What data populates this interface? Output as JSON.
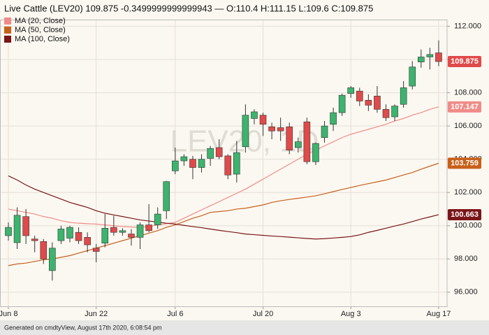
{
  "chart_data": {
    "type": "candlestick",
    "title": "Live Cattle (LEV20) 109.875 -0.3499999999999943 — O:110.4 H:111.15 L:109.6 C:109.875",
    "watermark": "LEV20, 1D",
    "footer": "Generated on cmdtyView, August 17th 2020, 6:08:54 pm",
    "categories": [
      "Jun 8",
      null,
      null,
      null,
      null,
      null,
      null,
      null,
      null,
      null,
      "Jun 22",
      null,
      null,
      null,
      null,
      null,
      null,
      null,
      null,
      "Jul 6",
      null,
      null,
      null,
      null,
      null,
      null,
      null,
      null,
      null,
      "Jul 20",
      null,
      null,
      null,
      null,
      null,
      null,
      null,
      null,
      null,
      "Aug 3",
      null,
      null,
      null,
      null,
      null,
      null,
      null,
      null,
      null,
      "Aug 17"
    ],
    "open": [
      99.4,
      98.98,
      100.55,
      99.2,
      99.05,
      97.3,
      99.1,
      99.25,
      99.6,
      99.3,
      98.65,
      98.95,
      99.9,
      99.6,
      99.5,
      99.3,
      100.05,
      100.05,
      100.9,
      103.3,
      103.9,
      104.0,
      103.5,
      104.05,
      104.7,
      104.2,
      103.1,
      104.75,
      106.45,
      106.65,
      105.95,
      105.9,
      105.95,
      104.7,
      106.25,
      103.85,
      105.3,
      106.1,
      106.8,
      107.95,
      108.1,
      107.55,
      107.8,
      107.0,
      106.55,
      107.3,
      108.4,
      109.85,
      110.15,
      110.4
    ],
    "high": [
      100.2,
      101.1,
      101.0,
      99.4,
      99.2,
      99.0,
      100.0,
      100.0,
      99.9,
      99.6,
      98.9,
      100.7,
      100.6,
      99.85,
      99.8,
      100.2,
      101.3,
      101.1,
      102.7,
      104.7,
      104.3,
      104.2,
      104.3,
      104.8,
      105.2,
      104.3,
      105.1,
      107.3,
      107.0,
      106.8,
      106.2,
      106.5,
      106.2,
      105.3,
      106.5,
      105.0,
      106.3,
      107.1,
      107.95,
      108.4,
      108.3,
      107.9,
      108.4,
      107.3,
      107.3,
      108.7,
      109.9,
      110.6,
      110.7,
      111.15
    ],
    "low": [
      99.1,
      98.6,
      98.9,
      98.4,
      97.7,
      96.7,
      98.9,
      99.0,
      98.9,
      98.4,
      97.8,
      98.7,
      99.4,
      99.4,
      98.8,
      98.6,
      99.6,
      99.8,
      100.4,
      103.1,
      103.6,
      102.8,
      103.2,
      103.6,
      104.0,
      102.8,
      102.6,
      104.4,
      106.1,
      105.4,
      105.2,
      105.1,
      104.3,
      104.4,
      103.7,
      103.65,
      105.0,
      105.7,
      106.6,
      107.7,
      107.2,
      106.9,
      106.8,
      106.3,
      106.3,
      107.1,
      108.2,
      109.5,
      109.4,
      109.6
    ],
    "close": [
      99.9,
      100.63,
      99.4,
      99.1,
      98.0,
      98.65,
      99.8,
      99.9,
      99.1,
      98.85,
      98.45,
      99.85,
      99.6,
      99.7,
      99.3,
      100.05,
      99.7,
      100.7,
      102.65,
      103.9,
      104.15,
      103.5,
      104.0,
      104.65,
      104.15,
      103.05,
      104.4,
      106.65,
      106.85,
      106.1,
      105.7,
      105.7,
      104.55,
      105.05,
      103.85,
      104.95,
      106.0,
      106.8,
      107.85,
      108.3,
      107.5,
      107.25,
      107.0,
      106.5,
      107.2,
      108.3,
      109.55,
      110.15,
      110.3,
      109.875
    ],
    "up_color": "#3cb46e",
    "down_color": "#e04a4a",
    "last_label": "109.875",
    "last_color": "#e04a4a",
    "series": [
      {
        "name": "MA (20, Close)",
        "color": "#f08c88",
        "last_label": "107.147",
        "values": [
          101.0,
          100.9,
          100.8,
          100.7,
          100.55,
          100.45,
          100.3,
          100.2,
          100.15,
          100.12,
          100.1,
          100.05,
          100.0,
          99.95,
          99.92,
          99.9,
          99.95,
          100.05,
          100.12,
          100.2,
          100.45,
          100.7,
          100.95,
          101.2,
          101.45,
          101.7,
          101.95,
          102.2,
          102.5,
          102.8,
          103.1,
          103.4,
          103.7,
          104.0,
          104.3,
          104.55,
          104.8,
          105.05,
          105.3,
          105.5,
          105.65,
          105.8,
          105.95,
          106.1,
          106.3,
          106.45,
          106.65,
          106.8,
          107.0,
          107.147
        ]
      },
      {
        "name": "MA (50, Close)",
        "color": "#c8601a",
        "last_label": "103.759",
        "values": [
          97.6,
          97.7,
          97.75,
          97.85,
          97.95,
          98.0,
          98.1,
          98.2,
          98.35,
          98.5,
          98.65,
          98.8,
          98.95,
          99.1,
          99.25,
          99.4,
          99.55,
          99.7,
          99.9,
          100.05,
          100.25,
          100.45,
          100.6,
          100.8,
          100.85,
          100.9,
          101.0,
          101.05,
          101.15,
          101.25,
          101.4,
          101.5,
          101.58,
          101.65,
          101.72,
          101.8,
          101.92,
          102.05,
          102.18,
          102.3,
          102.42,
          102.53,
          102.64,
          102.75,
          102.9,
          103.05,
          103.2,
          103.4,
          103.58,
          103.759
        ]
      },
      {
        "name": "MA (100, Close)",
        "color": "#7a1518",
        "last_label": "100.663",
        "values": [
          103.0,
          102.75,
          102.45,
          102.2,
          102.0,
          101.8,
          101.6,
          101.4,
          101.25,
          101.1,
          100.9,
          100.75,
          100.65,
          100.55,
          100.45,
          100.35,
          100.28,
          100.22,
          100.15,
          100.1,
          100.02,
          99.95,
          99.88,
          99.8,
          99.72,
          99.65,
          99.58,
          99.5,
          99.46,
          99.42,
          99.38,
          99.35,
          99.31,
          99.27,
          99.23,
          99.2,
          99.22,
          99.26,
          99.3,
          99.35,
          99.45,
          99.6,
          99.72,
          99.85,
          99.98,
          100.1,
          100.25,
          100.4,
          100.53,
          100.663
        ]
      }
    ],
    "ylim": [
      95.15,
      112.4
    ],
    "yticks": [
      {
        "value": 96,
        "label": "96.000"
      },
      {
        "value": 98,
        "label": "98.000"
      },
      {
        "value": 100,
        "label": "100.000"
      },
      {
        "value": 102,
        "label": "102.000"
      },
      {
        "value": 104,
        "label": "104.000"
      },
      {
        "value": 106,
        "label": "106.000"
      },
      {
        "value": 108,
        "label": "108.000"
      },
      {
        "value": 110,
        "label": "110.000"
      },
      {
        "value": 112,
        "label": "112.000"
      }
    ],
    "grid": true,
    "legend": "top-left"
  }
}
